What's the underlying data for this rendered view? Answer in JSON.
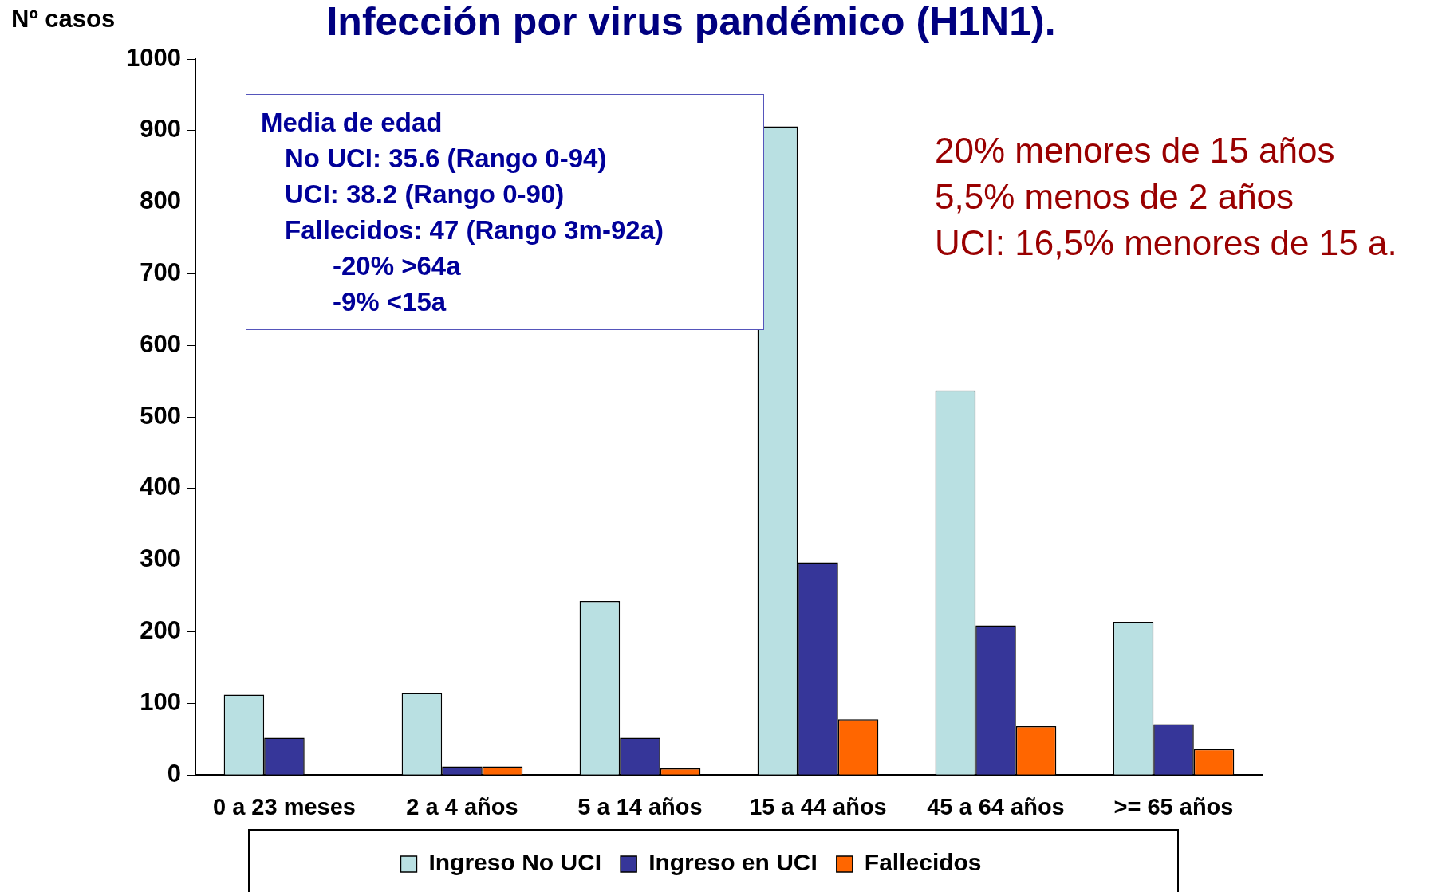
{
  "chart_data": {
    "type": "bar",
    "title": "Infección por virus pandémico (H1N1).",
    "ylabel": "Nº casos",
    "categories": [
      "0 a 23 meses",
      "2 a 4 años",
      "5 a 14 años",
      "15 a 44 años",
      "45 a 64 años",
      ">= 65 años"
    ],
    "series": [
      {
        "name": "Ingreso No UCI",
        "color": "#b9e0e2",
        "values": [
          112,
          115,
          243,
          906,
          537,
          214
        ]
      },
      {
        "name": "Ingreso en UCI",
        "color": "#363699",
        "values": [
          52,
          12,
          52,
          297,
          209,
          71
        ]
      },
      {
        "name": "Fallecidos",
        "color": "#ff6600",
        "values": [
          0,
          12,
          9,
          78,
          68,
          36
        ]
      }
    ],
    "ylim": [
      0,
      1000
    ],
    "yticks": [
      0,
      100,
      200,
      300,
      400,
      500,
      600,
      700,
      800,
      900,
      1000
    ],
    "grid": false,
    "legend": "bottom",
    "annotations": [
      "Media de edad",
      "No UCI: 35.6 (Rango 0-94)",
      "UCI: 38.2 (Rango 0-90)",
      "Fallecidos: 47 (Rango 3m-92a)",
      "-20% >64a",
      "-9% <15a",
      "20% menores de 15 años",
      "5,5% menos de 2 años",
      "UCI: 16,5% menores de 15 a."
    ]
  }
}
